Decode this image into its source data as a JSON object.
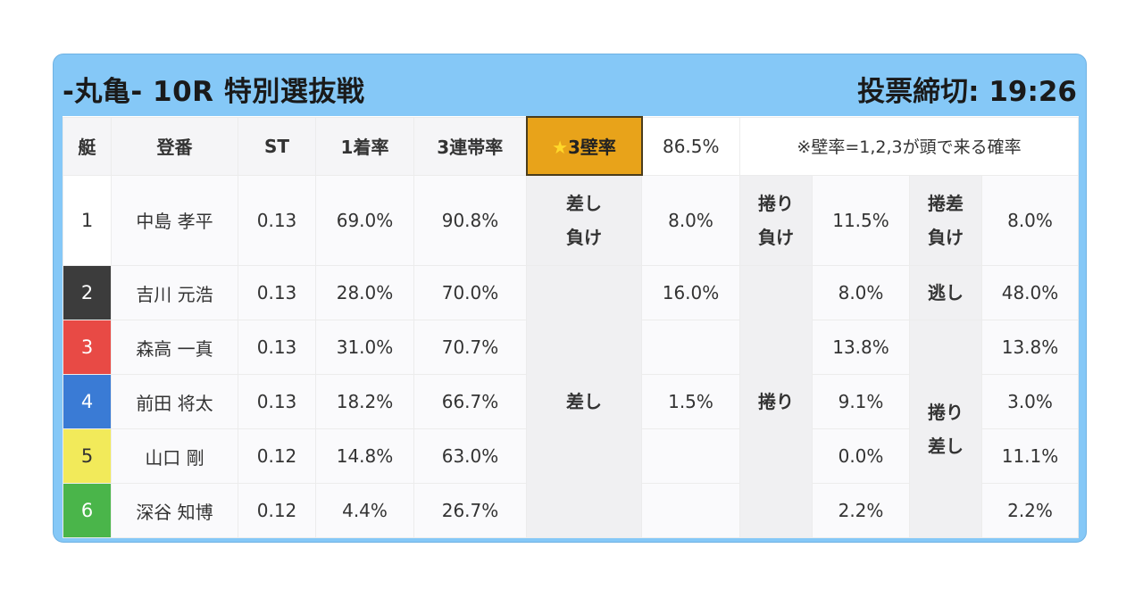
{
  "header": {
    "title": "-丸亀- 10R 特別選抜戦",
    "deadline": "投票締切: 19:26"
  },
  "columns": {
    "boat": "艇",
    "registration": "登番",
    "st": "ST",
    "first_rate": "1着率",
    "trio_rate": "3連帯率",
    "star": "★",
    "wall_rate_label": "3壁率",
    "wall_rate_value": "86.5%",
    "note": "※壁率=1,2,3が頭で来る確率"
  },
  "boats": [
    {
      "num": "1",
      "color": "#ffffff",
      "text_color": "#333333",
      "name": "中島 孝平",
      "st": "0.13",
      "first": "69.0%",
      "trio": "90.8%"
    },
    {
      "num": "2",
      "color": "#3c3c3c",
      "text_color": "#ffffff",
      "name": "吉川 元浩",
      "st": "0.13",
      "first": "28.0%",
      "trio": "70.0%"
    },
    {
      "num": "3",
      "color": "#e84a45",
      "text_color": "#ffffff",
      "name": "森高 一真",
      "st": "0.13",
      "first": "31.0%",
      "trio": "70.7%"
    },
    {
      "num": "4",
      "color": "#3a7bd5",
      "text_color": "#ffffff",
      "name": "前田 将太",
      "st": "0.13",
      "first": "18.2%",
      "trio": "66.7%"
    },
    {
      "num": "5",
      "color": "#f2ea5a",
      "text_color": "#333333",
      "name": "山口 剛",
      "st": "0.12",
      "first": "14.8%",
      "trio": "63.0%"
    },
    {
      "num": "6",
      "color": "#4ab54a",
      "text_color": "#ffffff",
      "name": "深谷 知博",
      "st": "0.12",
      "first": "4.4%",
      "trio": "26.7%"
    }
  ],
  "patterns": {
    "sashi_make": {
      "label_line1": "差し",
      "label_line2": "負け",
      "value": "8.0%"
    },
    "makuri_make": {
      "label_line1": "捲り",
      "label_line2": "負け",
      "value": "11.5%"
    },
    "makurisashi_make": {
      "label_line1": "捲差",
      "label_line2": "負け",
      "value": "8.0%"
    },
    "sashi": {
      "label": "差し",
      "values": [
        "16.0%",
        "",
        "1.5%",
        "",
        ""
      ]
    },
    "makuri": {
      "label": "捲り",
      "values": [
        "8.0%",
        "13.8%",
        "9.1%",
        "0.0%",
        "2.2%"
      ]
    },
    "nige": {
      "label": "逃し",
      "value": "48.0%"
    },
    "makurisashi": {
      "label_line1": "捲り",
      "label_line2": "差し",
      "values": [
        "13.8%",
        "3.0%",
        "11.1%",
        "2.2%"
      ]
    }
  }
}
